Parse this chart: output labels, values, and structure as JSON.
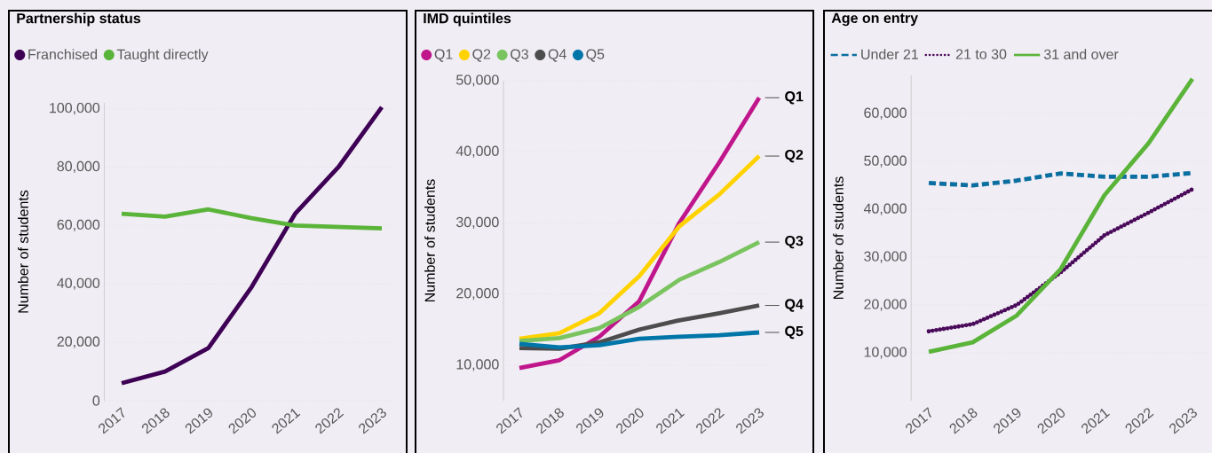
{
  "chart_data": [
    {
      "type": "line",
      "title": "Partnership status",
      "ylabel": "Number of students",
      "categories": [
        "2017",
        "2018",
        "2019",
        "2020",
        "2021",
        "2022",
        "2023"
      ],
      "series": [
        {
          "name": "Franchised",
          "color": "#3d0055",
          "values": [
            6000,
            10000,
            18000,
            39000,
            64000,
            80000,
            100500
          ]
        },
        {
          "name": "Taught directly",
          "color": "#5bb43a",
          "values": [
            64000,
            63000,
            65500,
            62500,
            60000,
            59500,
            59000
          ]
        }
      ],
      "yticks": [
        0,
        {
          "value": 20000,
          "label": "20,000"
        },
        {
          "value": 40000,
          "label": "40,000"
        },
        {
          "value": 60000,
          "label": "60,000"
        },
        {
          "value": 80000,
          "label": "80,000"
        },
        {
          "value": 100000,
          "label": "100,000"
        }
      ],
      "ylim": [
        0,
        102000
      ],
      "grid": "y",
      "legend": "top left",
      "marker": "none"
    },
    {
      "type": "line",
      "title": "IMD quintiles",
      "ylabel": "Number of students",
      "categories": [
        "2017",
        "2018",
        "2019",
        "2020",
        "2021",
        "2022",
        "2023"
      ],
      "series": [
        {
          "name": "Q1",
          "color": "#c0168c",
          "values": [
            9600,
            10700,
            14000,
            19000,
            30000,
            38500,
            47600
          ]
        },
        {
          "name": "Q2",
          "color": "#ffd200",
          "values": [
            13700,
            14500,
            17300,
            22500,
            29500,
            34000,
            39400
          ]
        },
        {
          "name": "Q3",
          "color": "#7ac460",
          "values": [
            13400,
            13800,
            15200,
            18200,
            22000,
            24500,
            27300
          ]
        },
        {
          "name": "Q4",
          "color": "#4d4d4d",
          "values": [
            12400,
            12300,
            13200,
            15000,
            16300,
            17300,
            18400
          ]
        },
        {
          "name": "Q5",
          "color": "#0075a8",
          "values": [
            13000,
            12500,
            12800,
            13700,
            14000,
            14200,
            14600
          ]
        }
      ],
      "annotations": [
        {
          "text": "Q1",
          "x": "2023",
          "y": 47600
        },
        {
          "text": "Q2",
          "x": "2023",
          "y": 39400
        },
        {
          "text": "Q3",
          "x": "2023",
          "y": 27300
        },
        {
          "text": "Q4",
          "x": "2023",
          "y": 18400
        },
        {
          "text": "Q5",
          "x": "2023",
          "y": 14600
        }
      ],
      "yticks": [
        {
          "value": 10000,
          "label": "10,000"
        },
        {
          "value": 20000,
          "label": "20,000"
        },
        {
          "value": 30000,
          "label": "30,000"
        },
        {
          "value": 40000,
          "label": "40,000"
        },
        {
          "value": 50000,
          "label": "50,000"
        }
      ],
      "ylim": [
        5000,
        50000
      ],
      "grid": "y",
      "legend": "top left",
      "marker": "none"
    },
    {
      "type": "line",
      "title": "Age on entry",
      "ylabel": "Number of students",
      "categories": [
        "2017",
        "2018",
        "2019",
        "2020",
        "2021",
        "2022",
        "2023"
      ],
      "series": [
        {
          "name": "Under 21",
          "color": "#0a6fa0",
          "line_style": "dashed",
          "values": [
            45500,
            45000,
            46000,
            47500,
            46800,
            46800,
            47600
          ]
        },
        {
          "name": "21 to 30",
          "color": "#4a0a5a",
          "line_style": "dotted",
          "values": [
            14500,
            16000,
            20000,
            26800,
            34600,
            39300,
            44200
          ]
        },
        {
          "name": "31 and over",
          "color": "#5bb43a",
          "line_style": "solid",
          "values": [
            10200,
            12200,
            17800,
            27500,
            43000,
            53800,
            67300
          ]
        }
      ],
      "yticks": [
        {
          "value": 10000,
          "label": "10,000"
        },
        {
          "value": 20000,
          "label": "20,000"
        },
        {
          "value": 30000,
          "label": "30,000"
        },
        {
          "value": 40000,
          "label": "40,000"
        },
        {
          "value": 50000,
          "label": "50,000"
        },
        {
          "value": 60000,
          "label": "60,000"
        }
      ],
      "ylim": [
        0,
        68000
      ],
      "grid": "y",
      "legend": "top left",
      "marker": "none"
    }
  ]
}
